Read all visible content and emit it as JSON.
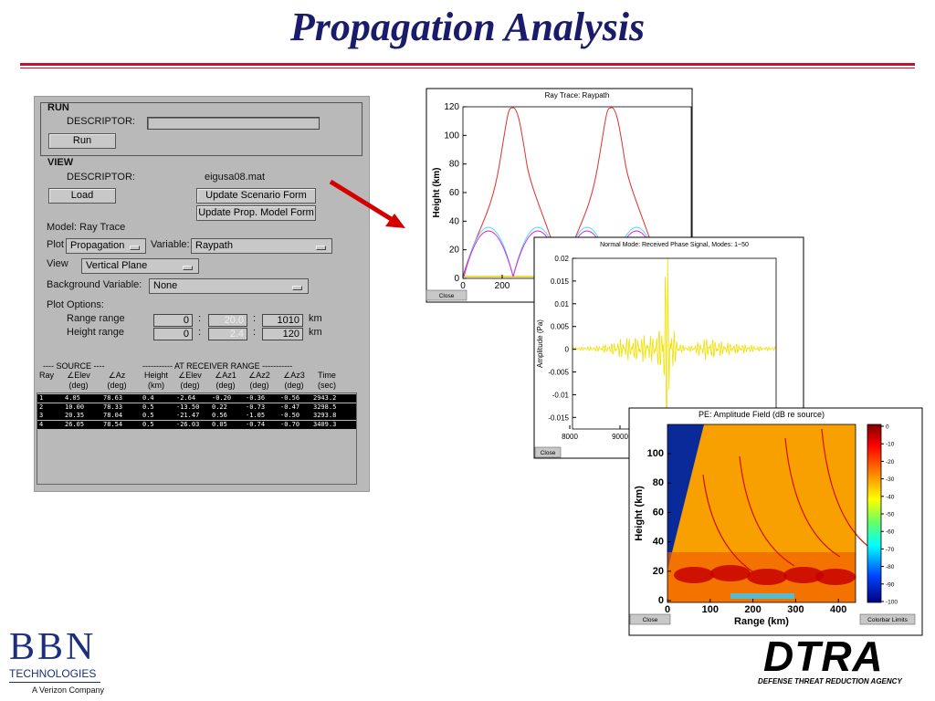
{
  "title": "Propagation Analysis",
  "form": {
    "run_heading": "RUN",
    "run_descriptor_label": "DESCRIPTOR:",
    "run_button": "Run",
    "view_heading": "VIEW",
    "view_descriptor_label": "DESCRIPTOR:",
    "view_descriptor_value": "eigusa08.mat",
    "load_button": "Load",
    "update_scenario_button": "Update Scenario Form",
    "update_model_button": "Update Prop. Model Form",
    "model": "Model: Ray Trace",
    "plot_label": "Plot",
    "plot_value": "Propagation",
    "variable_label": "Variable:",
    "variable_value": "Raypath",
    "view_label": "View",
    "view_value": "Vertical Plane",
    "background_label": "Background Variable:",
    "background_value": "None",
    "plot_options": "Plot Options:",
    "range_label": "Range range",
    "range_values": [
      "0",
      "20.0",
      "1010"
    ],
    "range_unit": "km",
    "height_label": "Height range",
    "height_values": [
      "0",
      "2.4",
      "120"
    ],
    "height_unit": "km",
    "separator": ":",
    "table": {
      "source_group": "---- SOURCE ----",
      "receiver_group": "----------- AT RECEIVER RANGE -----------",
      "headers": [
        [
          "Ray"
        ],
        [
          "∠Elev",
          "(deg)"
        ],
        [
          "∠Az",
          "(deg)"
        ],
        [
          "Height",
          "(km)"
        ],
        [
          "∠Elev",
          "(deg)"
        ],
        [
          "∠Az1",
          "(deg)"
        ],
        [
          "∠Az2",
          "(deg)"
        ],
        [
          "∠Az3",
          "(deg)"
        ],
        [
          "Time",
          "(sec)"
        ]
      ],
      "rows": [
        [
          "1",
          "4.05",
          "78.63",
          "0.4",
          "-2.64",
          "-0.20",
          "-0.36",
          "-0.56",
          "2943.2"
        ],
        [
          "2",
          "10.00",
          "78.33",
          "0.5",
          "-13.50",
          "0.22",
          "-0.73",
          "-0.47",
          "3298.5"
        ],
        [
          "3",
          "20.35",
          "78.04",
          "0.5",
          "-21.47",
          "0.56",
          "-1.05",
          "-0.50",
          "3293.8"
        ],
        [
          "4",
          "26.05",
          "78.54",
          "0.5",
          "-26.03",
          "0.05",
          "-0.74",
          "-0.70",
          "3409.3"
        ]
      ]
    }
  },
  "plots": [
    {
      "title": "Ray Trace: Raypath",
      "ylabel": "Height (km)",
      "yticks": [
        "0",
        "20",
        "40",
        "60",
        "80",
        "100",
        "120"
      ],
      "xticks": [
        "0",
        "200"
      ],
      "buttons": [
        "Close"
      ]
    },
    {
      "title": "Normal Mode: Received Phase Signal, Modes: 1~50",
      "ylabel": "Amplitude (Pa)",
      "yticks": [
        "-0.015",
        "-0.01",
        "-0.005",
        "0",
        "0.005",
        "0.01",
        "0.015",
        "0.02"
      ],
      "xticks": [
        "8000",
        "9000"
      ],
      "buttons": [
        "Close"
      ]
    },
    {
      "title": "PE: Amplitude Field (dB re source)",
      "ylabel": "Height (km)",
      "xlabel": "Range (km)",
      "yticks": [
        "0",
        "20",
        "40",
        "60",
        "80",
        "100"
      ],
      "xticks": [
        "0",
        "100",
        "200",
        "300",
        "400"
      ],
      "colorbar_ticks": [
        "-100",
        "-90",
        "-80",
        "-70",
        "-60",
        "-50",
        "-40",
        "-30",
        "-20",
        "-10",
        "0"
      ],
      "buttons": [
        "Close",
        "Colorbar Limits"
      ]
    }
  ],
  "logos": {
    "bbn": "BBN",
    "bbn_sub": "TECHNOLOGIES",
    "bbn_parent": "A Verizon Company",
    "dtra": "DTRA",
    "dtra_sub": "DEFENSE THREAT REDUCTION AGENCY"
  }
}
